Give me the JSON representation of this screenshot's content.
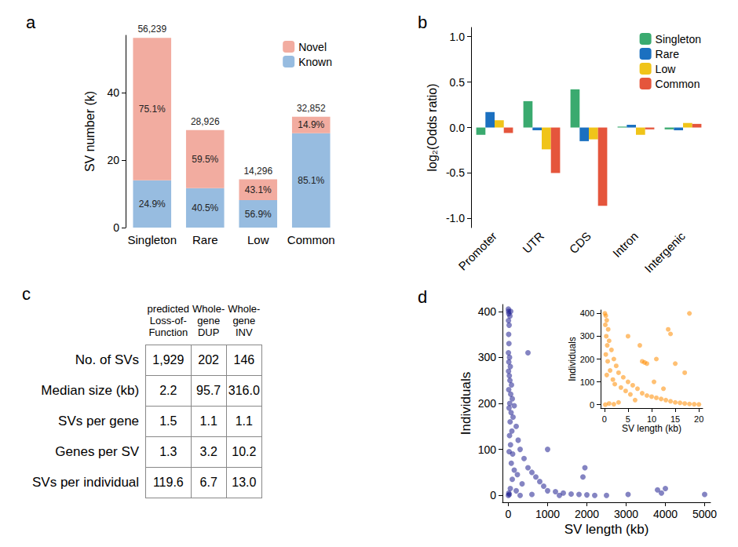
{
  "chart_data": [
    {
      "type": "bar",
      "title": "a",
      "stacked": true,
      "data_labels": true,
      "legend": "top right",
      "categories": [
        "Singleton",
        "Rare",
        "Low",
        "Common"
      ],
      "y_label": "SV number (k)",
      "ylim": [
        0,
        57
      ],
      "yticks": [
        0,
        20,
        40
      ],
      "series": [
        {
          "name": "Known",
          "color": "#97BCE0",
          "values": [
            14.004,
            11.715,
            8.134,
            27.957
          ],
          "share_labels": [
            "24.9%",
            "40.5%",
            "56.9%",
            "85.1%"
          ]
        },
        {
          "name": "Novel",
          "color": "#F2ACA0",
          "values": [
            42.235,
            17.211,
            6.162,
            4.895
          ],
          "share_labels": [
            "75.1%",
            "59.5%",
            "43.1%",
            "14.9%"
          ]
        }
      ],
      "total_labels": [
        "56,239",
        "28,926",
        "14,296",
        "32,852"
      ]
    },
    {
      "type": "bar",
      "title": "b",
      "legend": "top right",
      "categories": [
        "Promoter",
        "UTR",
        "CDS",
        "Intron",
        "Intergenic"
      ],
      "y_label": "log₂(Odds ratio)",
      "ylim": [
        -1.1,
        1.1
      ],
      "yticks": [
        {
          "value": -1,
          "label": "-1.0"
        },
        -0.5,
        {
          "value": 0,
          "label": "0.0"
        },
        0.5,
        {
          "value": 1,
          "label": "1.0"
        }
      ],
      "series": [
        {
          "name": "Singleton",
          "color": "#3AAA6F",
          "values": [
            -0.08,
            0.29,
            0.42,
            0.01,
            -0.02
          ]
        },
        {
          "name": "Rare",
          "color": "#1B70C0",
          "values": [
            0.17,
            -0.03,
            -0.15,
            0.03,
            -0.03
          ]
        },
        {
          "name": "Low",
          "color": "#F0C419",
          "values": [
            0.08,
            -0.24,
            -0.13,
            -0.08,
            0.05
          ]
        },
        {
          "name": "Common",
          "color": "#E5553C",
          "values": [
            -0.06,
            -0.5,
            -0.86,
            -0.02,
            0.04
          ]
        }
      ]
    },
    {
      "type": "scatter",
      "title": "d",
      "color": "#1F1F8F",
      "x_label": "SV length (kb)",
      "y_label": "Individuals",
      "xlim": [
        -150,
        5150
      ],
      "xticks": [
        0,
        1000,
        2000,
        3000,
        4000,
        5000
      ],
      "ylim": [
        -15,
        415
      ],
      "yticks": [
        0,
        100,
        200,
        300,
        400
      ],
      "x": [
        0,
        5,
        10,
        3,
        20,
        8,
        15,
        2,
        30,
        12,
        50,
        5,
        25,
        40,
        80,
        10,
        60,
        100,
        35,
        150,
        18,
        70,
        120,
        45,
        200,
        90,
        30,
        250,
        55,
        300,
        20,
        110,
        400,
        75,
        500,
        150,
        600,
        230,
        700,
        100,
        800,
        350,
        900,
        50,
        1000,
        1200,
        1400,
        1600,
        1800,
        2000,
        500,
        1000,
        1900,
        1950,
        2500,
        3050,
        3800,
        3900,
        4000,
        5000,
        2200,
        1300,
        600,
        300,
        200,
        60,
        40,
        10,
        0,
        25
      ],
      "values": [
        405,
        400,
        395,
        380,
        370,
        350,
        330,
        310,
        300,
        290,
        280,
        270,
        260,
        250,
        240,
        230,
        220,
        210,
        200,
        195,
        190,
        180,
        170,
        160,
        150,
        140,
        130,
        120,
        110,
        100,
        95,
        90,
        80,
        70,
        60,
        55,
        50,
        45,
        40,
        35,
        30,
        25,
        20,
        15,
        10,
        8,
        5,
        3,
        2,
        1,
        310,
        100,
        40,
        60,
        0,
        2,
        12,
        5,
        15,
        2,
        0,
        0,
        2,
        0,
        10,
        400,
        390,
        5,
        0,
        2
      ]
    },
    {
      "type": "scatter",
      "color": "#FF8C00",
      "x_label": "SV length (kb)",
      "y_label": "Individuals",
      "xlim": [
        -0.8,
        20.8
      ],
      "xticks": [
        0,
        5,
        10,
        15,
        20
      ],
      "ylim": [
        -15,
        415
      ],
      "yticks": [
        0,
        100,
        200,
        300,
        400
      ],
      "x": [
        0.1,
        0.3,
        0.5,
        0.2,
        0.8,
        0.4,
        1,
        0.6,
        1.5,
        0.3,
        2,
        0.7,
        2.5,
        1.2,
        3,
        0.5,
        4,
        1.8,
        5,
        2.2,
        6,
        3.5,
        7,
        4.5,
        8,
        5.5,
        9,
        10,
        11,
        12,
        13,
        14,
        15,
        16,
        17,
        18,
        19,
        20,
        8,
        8.5,
        9,
        10.5,
        11,
        13.5,
        14,
        15,
        17,
        18,
        12.5,
        6.5,
        3,
        1,
        2,
        0.2,
        5,
        7.5
      ],
      "values": [
        400,
        390,
        370,
        350,
        330,
        300,
        280,
        260,
        240,
        220,
        200,
        190,
        170,
        150,
        140,
        130,
        120,
        110,
        100,
        90,
        85,
        75,
        70,
        60,
        50,
        45,
        40,
        35,
        30,
        25,
        20,
        15,
        10,
        8,
        5,
        3,
        2,
        1,
        190,
        185,
        180,
        100,
        200,
        330,
        310,
        180,
        140,
        400,
        70,
        20,
        10,
        5,
        2,
        0,
        300,
        260
      ]
    }
  ],
  "table": {
    "title": "c",
    "columns": [
      "predicted Loss-of-Function",
      "Whole-gene DUP",
      "Whole-gene INV"
    ],
    "rows": [
      [
        "No. of SVs",
        "1,929",
        "202",
        "146"
      ],
      [
        "Median size (kb)",
        "2.2",
        "95.7",
        "316.0"
      ],
      [
        "SVs per gene",
        "1.5",
        "1.1",
        "1.1"
      ],
      [
        "Genes per SV",
        "1.3",
        "3.2",
        "10.2"
      ],
      [
        "SVs per individual",
        "119.6",
        "6.7",
        "13.0"
      ]
    ]
  }
}
